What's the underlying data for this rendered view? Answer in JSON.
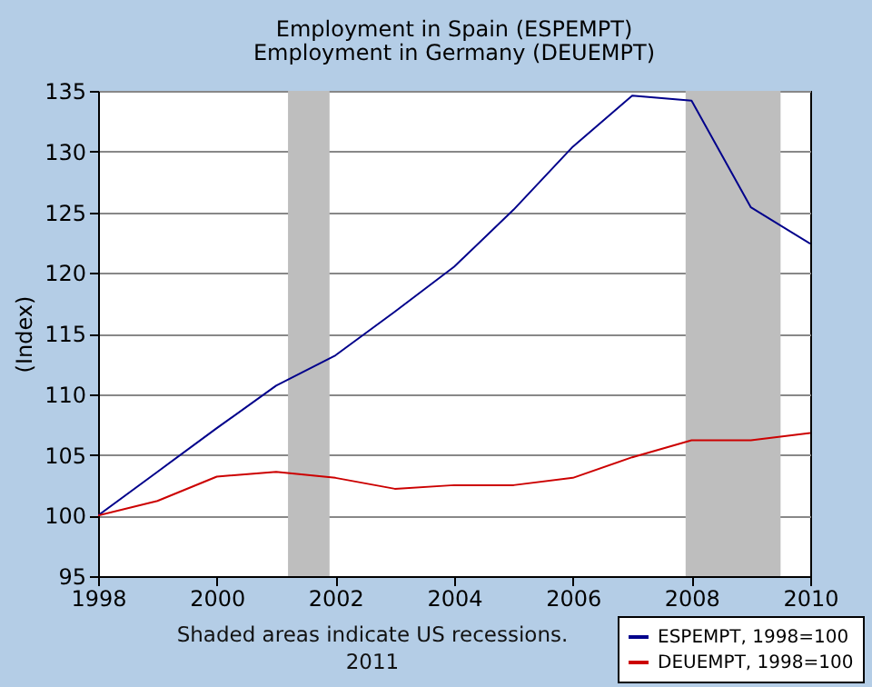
{
  "chart_data": {
    "type": "line",
    "title": "Employment in Spain (ESPEMPT)",
    "subtitle": "Employment in Germany (DEUEMPT)",
    "ylabel": "(Index)",
    "x": [
      1998,
      1999,
      2000,
      2001,
      2002,
      2003,
      2004,
      2005,
      2006,
      2007,
      2008,
      2009,
      2010
    ],
    "series": [
      {
        "name": "ESPEMPT, 1998=100",
        "color": "#00008b",
        "values": [
          100,
          103.6,
          107.2,
          110.7,
          113.2,
          116.8,
          120.5,
          125.2,
          130.4,
          134.6,
          134.2,
          125.4,
          122.4
        ]
      },
      {
        "name": "DEUEMPT, 1998=100",
        "color": "#cc0000",
        "values": [
          100,
          101.2,
          103.2,
          103.6,
          103.1,
          102.2,
          102.5,
          102.5,
          103.1,
          104.8,
          106.2,
          106.2,
          106.8
        ]
      }
    ],
    "xlim": [
      1998,
      2010
    ],
    "xticks": [
      1998,
      2000,
      2002,
      2004,
      2006,
      2008,
      2010
    ],
    "ylim": [
      95,
      135
    ],
    "yticks": [
      95,
      100,
      105,
      110,
      115,
      120,
      125,
      130,
      135
    ],
    "bands": [
      {
        "axis": "x",
        "from": 2001.2,
        "to": 2001.9,
        "color": "#bebebe"
      },
      {
        "axis": "x",
        "from": 2007.9,
        "to": 2009.5,
        "color": "#bebebe"
      }
    ],
    "grid": "y",
    "legend": "bottom right",
    "annotations": [
      "Shaded areas indicate US recessions.",
      "2011"
    ]
  }
}
